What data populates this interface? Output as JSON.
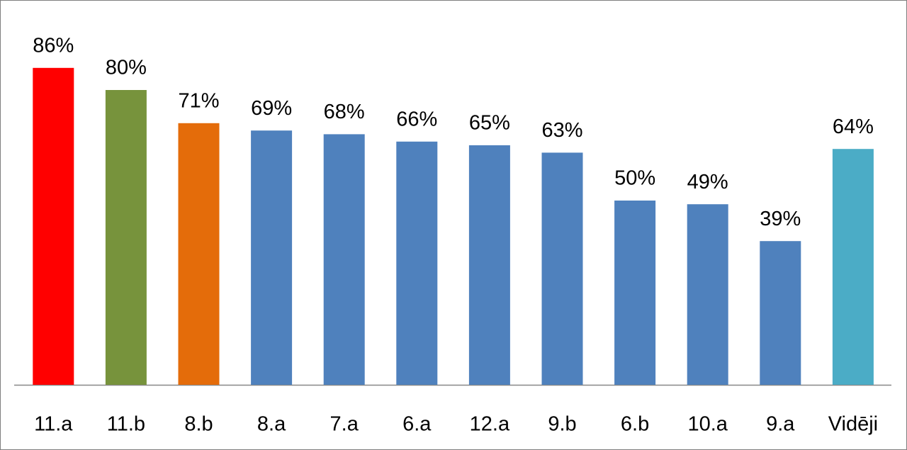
{
  "chart_data": {
    "type": "bar",
    "categories": [
      "11.a",
      "11.b",
      "8.b",
      "8.a",
      "7.a",
      "6.a",
      "12.a",
      "9.b",
      "6.b",
      "10.a",
      "9.a",
      "Vidēji"
    ],
    "values": [
      86,
      80,
      71,
      69,
      68,
      66,
      65,
      63,
      50,
      49,
      39,
      64
    ],
    "value_labels": [
      "86%",
      "80%",
      "71%",
      "69%",
      "68%",
      "66%",
      "65%",
      "63%",
      "50%",
      "49%",
      "39%",
      "64%"
    ],
    "colors": [
      "#ff0000",
      "#77933c",
      "#e46c0a",
      "#4f81bd",
      "#4f81bd",
      "#4f81bd",
      "#4f81bd",
      "#4f81bd",
      "#4f81bd",
      "#4f81bd",
      "#4f81bd",
      "#4bacc6"
    ],
    "ylim": [
      0,
      100
    ]
  }
}
